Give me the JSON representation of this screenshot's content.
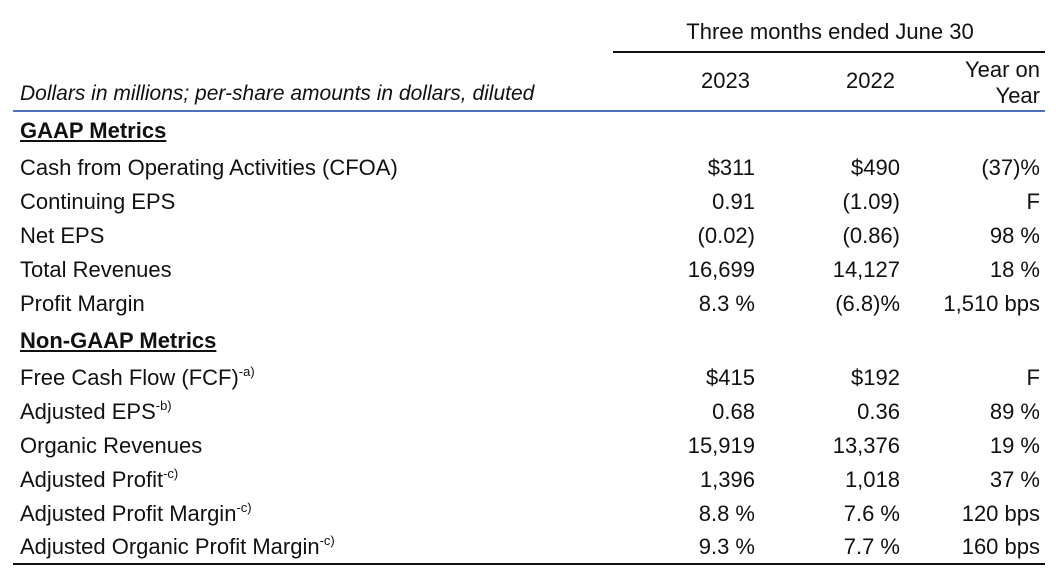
{
  "header": {
    "period": "Three months ended June 30",
    "units_note": "Dollars in millions; per-share amounts in dollars, diluted",
    "columns": {
      "y2023": "2023",
      "y2022": "2022",
      "yoy_line1": "Year on",
      "yoy_line2": "Year"
    }
  },
  "sections": [
    {
      "title": "GAAP Metrics",
      "rows": [
        {
          "label": "Cash from Operating Activities (CFOA)",
          "footnote": "",
          "y2023": "$311",
          "y2022": "$490",
          "yoy": "(37)%"
        },
        {
          "label": "Continuing EPS",
          "footnote": "",
          "y2023": "0.91",
          "y2022": "(1.09)",
          "yoy": "F"
        },
        {
          "label": "Net EPS",
          "footnote": "",
          "y2023": "(0.02)",
          "y2022": "(0.86)",
          "yoy": "98 %"
        },
        {
          "label": "Total Revenues",
          "footnote": "",
          "y2023": "16,699",
          "y2022": "14,127",
          "yoy": "18 %"
        },
        {
          "label": "Profit Margin",
          "footnote": "",
          "y2023": "8.3 %",
          "y2022": "(6.8)%",
          "yoy": "1,510 bps"
        }
      ]
    },
    {
      "title": "Non-GAAP Metrics",
      "rows": [
        {
          "label": "Free Cash Flow (FCF)",
          "footnote": "-a)",
          "y2023": "$415",
          "y2022": "$192",
          "yoy": "F"
        },
        {
          "label": "Adjusted EPS",
          "footnote": "-b)",
          "y2023": "0.68",
          "y2022": "0.36",
          "yoy": "89 %"
        },
        {
          "label": "Organic Revenues",
          "footnote": "",
          "y2023": "15,919",
          "y2022": "13,376",
          "yoy": "19 %"
        },
        {
          "label": "Adjusted Profit",
          "footnote": "-c)",
          "y2023": "1,396",
          "y2022": "1,018",
          "yoy": "37 %"
        },
        {
          "label": "Adjusted Profit Margin",
          "footnote": "-c)",
          "y2023": "8.8 %",
          "y2022": "7.6 %",
          "yoy": "120 bps"
        },
        {
          "label": "Adjusted Organic Profit Margin",
          "footnote": "-c)",
          "y2023": "9.3 %",
          "y2022": "7.7 %",
          "yoy": "160 bps"
        }
      ]
    }
  ]
}
